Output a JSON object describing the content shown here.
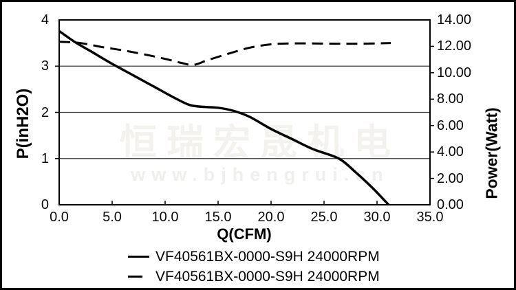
{
  "watermark": {
    "line1": "恒瑞宏晟机电",
    "line2": "www.bjhengrui.cn",
    "color1": "#f4f2ef",
    "color2": "#f1efec"
  },
  "colors": {
    "curve": "#000000",
    "gridline": "#3a3a3a",
    "plot_border": "#000000"
  },
  "chart_data": {
    "type": "line",
    "title": "",
    "grid": "horizontal",
    "legend_position": "bottom",
    "x_axis": {
      "label": "Q(CFM)",
      "min": 0,
      "max": 35,
      "ticks": [
        [
          0,
          "0.0"
        ],
        [
          5,
          "5.0"
        ],
        [
          10,
          "10.0"
        ],
        [
          15,
          "15.0"
        ],
        [
          20,
          "20.0"
        ],
        [
          25,
          "25.0"
        ],
        [
          30,
          "30.0"
        ],
        [
          35,
          "35.0"
        ]
      ]
    },
    "y_left": {
      "label": "P(inH2O)",
      "min": 0,
      "max": 4,
      "ticks": [
        [
          4,
          "4"
        ],
        [
          3,
          "3"
        ],
        [
          2,
          "2"
        ],
        [
          1,
          "1"
        ],
        [
          0,
          "0"
        ]
      ],
      "gridlines": [
        1,
        2,
        3
      ]
    },
    "y_right": {
      "label": "Power(Watt)",
      "min": 0,
      "max": 14,
      "ticks": [
        [
          14,
          "14.00"
        ],
        [
          12,
          "12.00"
        ],
        [
          10,
          "10.00"
        ],
        [
          8,
          "8.00"
        ],
        [
          6,
          "6.00"
        ],
        [
          4,
          "4.00"
        ],
        [
          2,
          "2.00"
        ],
        [
          0,
          "0.00"
        ]
      ]
    },
    "series": [
      {
        "name": "VF40561BX-0000-S9H 24000RPM",
        "style": "solid",
        "axis": "left",
        "points": [
          [
            0,
            3.76
          ],
          [
            1.5,
            3.52
          ],
          [
            3,
            3.32
          ],
          [
            5,
            3.05
          ],
          [
            7,
            2.8
          ],
          [
            9,
            2.55
          ],
          [
            11,
            2.3
          ],
          [
            12.3,
            2.16
          ],
          [
            13.5,
            2.12
          ],
          [
            15,
            2.1
          ],
          [
            16.5,
            2.03
          ],
          [
            18,
            1.9
          ],
          [
            20,
            1.64
          ],
          [
            22,
            1.42
          ],
          [
            24,
            1.2
          ],
          [
            26.4,
            1.0
          ],
          [
            28,
            0.7
          ],
          [
            29.5,
            0.38
          ],
          [
            31.1,
            0
          ]
        ]
      },
      {
        "name": "VF40561BX-0000-S9H 24000RPM",
        "style": "dashed",
        "axis": "right",
        "points": [
          [
            0,
            12.35
          ],
          [
            2,
            12.25
          ],
          [
            4,
            11.95
          ],
          [
            6,
            11.7
          ],
          [
            8,
            11.4
          ],
          [
            10,
            11.05
          ],
          [
            11.5,
            10.75
          ],
          [
            12.7,
            10.6
          ],
          [
            14,
            10.95
          ],
          [
            16,
            11.45
          ],
          [
            18,
            11.9
          ],
          [
            20,
            12.15
          ],
          [
            22,
            12.22
          ],
          [
            24,
            12.22
          ],
          [
            26,
            12.2
          ],
          [
            28,
            12.2
          ],
          [
            30,
            12.22
          ],
          [
            31.3,
            12.25
          ]
        ]
      }
    ]
  }
}
